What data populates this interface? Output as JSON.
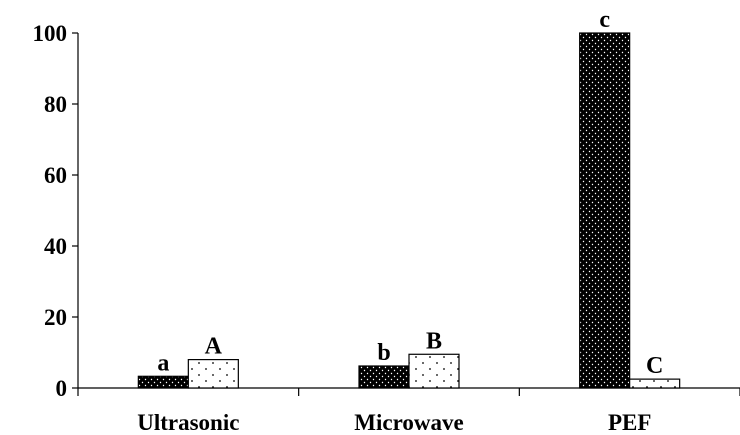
{
  "chart_data": {
    "type": "bar",
    "title": "",
    "xlabel": "",
    "ylabel": "",
    "categories": [
      "Ultrasonic",
      "Microwave",
      "PEF"
    ],
    "ylim": [
      0,
      100
    ],
    "yticks": [
      0,
      20,
      40,
      60,
      80,
      100
    ],
    "grid": false,
    "legend": "none",
    "series": [
      {
        "values": [
          3.3,
          6.2,
          100
        ],
        "letters": [
          "a",
          "b",
          "c"
        ],
        "pattern": "dark-dotted",
        "fill_color": "#000000",
        "dot_color": "#ffffff"
      },
      {
        "values": [
          8,
          9.5,
          2.5
        ],
        "letters": [
          "A",
          "B",
          "C"
        ],
        "pattern": "light-dotted",
        "fill_color": "#ffffff",
        "dot_color": "#000000"
      }
    ]
  }
}
